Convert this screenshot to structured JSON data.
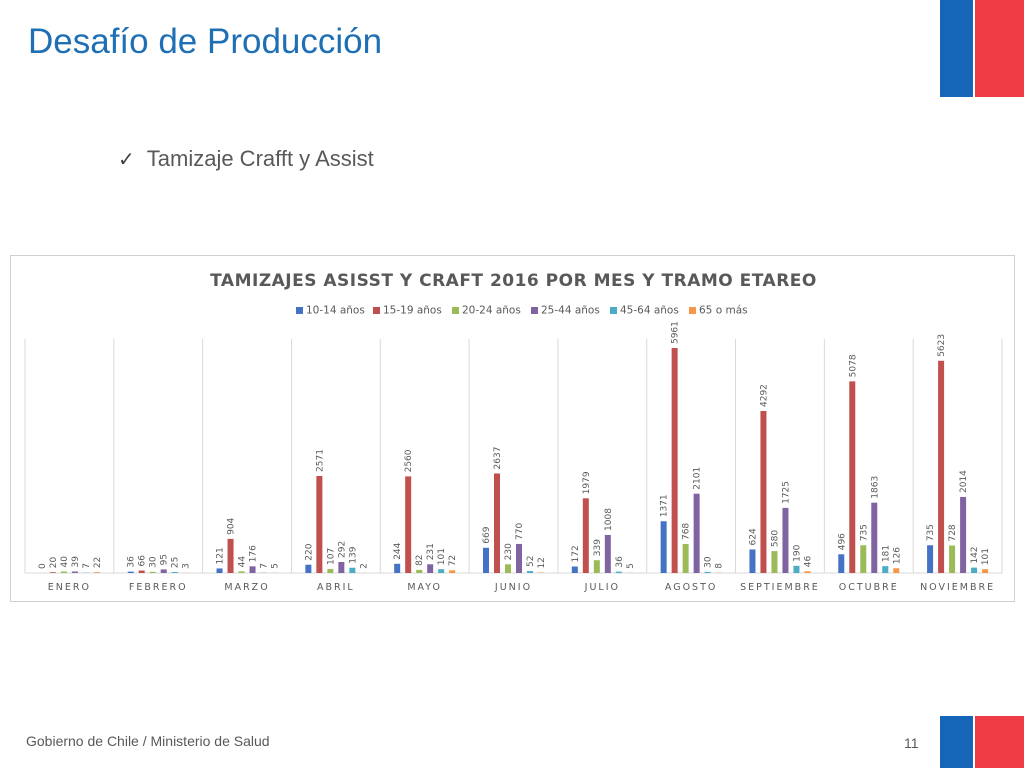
{
  "slide": {
    "title": "Desafío de Producción",
    "bullet": "Tamizaje Crafft y Assist",
    "bullet_icon": "checkmark-icon",
    "footer": "Gobierno de Chile / Ministerio de Salud",
    "page_number": "11"
  },
  "colors": {
    "title": "#1f6fb5",
    "flag_blue": "#1566b8",
    "flag_red": "#ee3b44"
  },
  "chart_data": {
    "type": "bar",
    "title": "TAMIZAJES ASISST Y CRAFT 2016 POR MES Y TRAMO ETAREO",
    "categories": [
      "ENERO",
      "FEBRERO",
      "MARZO",
      "ABRIL",
      "MAYO",
      "JUNIO",
      "JULIO",
      "AGOSTO",
      "SEPTIEMBRE",
      "OCTUBRE",
      "NOVIEMBRE"
    ],
    "series": [
      {
        "name": "10-14 años",
        "color": "#4472c4",
        "values": [
          0,
          36,
          121,
          220,
          244,
          669,
          172,
          1371,
          624,
          496,
          735
        ]
      },
      {
        "name": "15-19 años",
        "color": "#c0504d",
        "values": [
          20,
          66,
          904,
          2571,
          2560,
          2637,
          1979,
          5961,
          4292,
          5078,
          5623
        ]
      },
      {
        "name": "20-24 años",
        "color": "#9bbb59",
        "values": [
          40,
          30,
          44,
          107,
          82,
          230,
          339,
          768,
          580,
          735,
          728
        ]
      },
      {
        "name": "25-44 años",
        "color": "#8064a2",
        "values": [
          39,
          95,
          176,
          292,
          231,
          770,
          1008,
          2101,
          1725,
          1863,
          2014
        ]
      },
      {
        "name": "45-64 años",
        "color": "#4bacc6",
        "values": [
          7,
          25,
          7,
          139,
          101,
          52,
          36,
          30,
          190,
          181,
          142
        ]
      },
      {
        "name": "65 o más",
        "color": "#f79646",
        "values": [
          22,
          3,
          5,
          2,
          72,
          12,
          5,
          8,
          46,
          126,
          101
        ]
      }
    ],
    "ylim": [
      0,
      6200
    ],
    "legend_position": "top",
    "grid": false,
    "data_labels": true
  }
}
